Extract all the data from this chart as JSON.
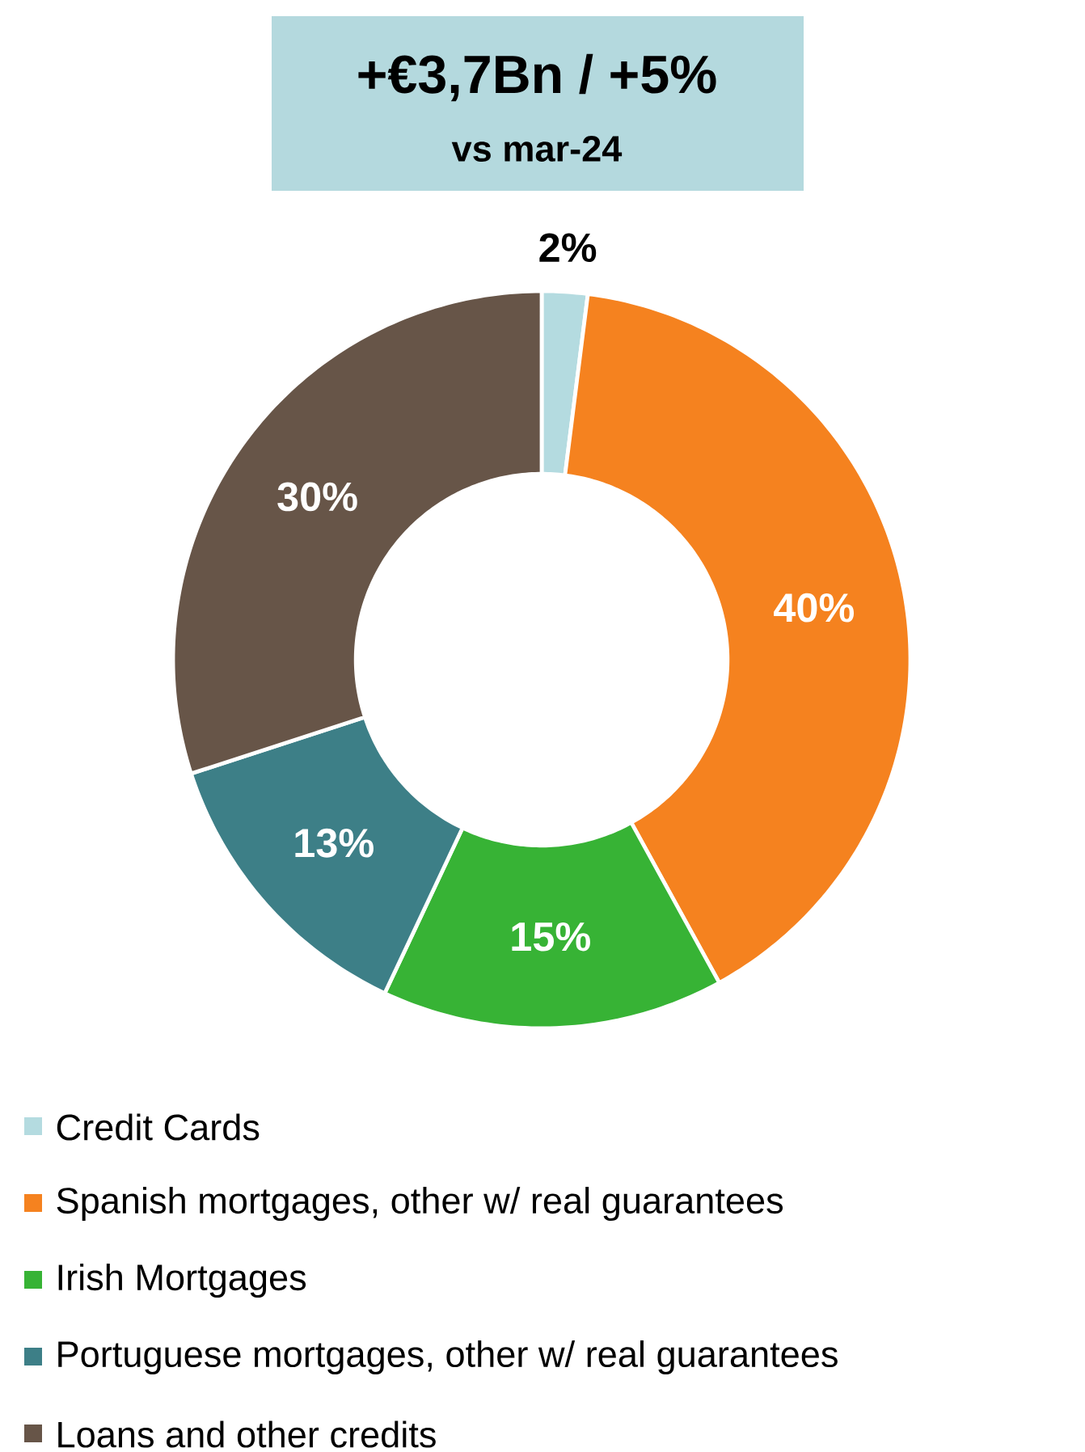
{
  "chart_data": {
    "type": "donut",
    "title": "+€3,7Bn / +5%",
    "subtitle": "vs mar-24",
    "categories": [
      "Credit Cards",
      "Spanish mortgages, other w/ real guarantees",
      "Irish Mortgages",
      "Portuguese mortgages, other w/ real guarantees",
      "Loans and other credits"
    ],
    "values": [
      2,
      40,
      15,
      13,
      30
    ],
    "colors": [
      "#b4dbe0",
      "#f5821f",
      "#37b335",
      "#3d7f87",
      "#675548"
    ],
    "value_labels": [
      "2%",
      "40%",
      "15%",
      "13%",
      "30%"
    ],
    "legend": "bottom"
  }
}
